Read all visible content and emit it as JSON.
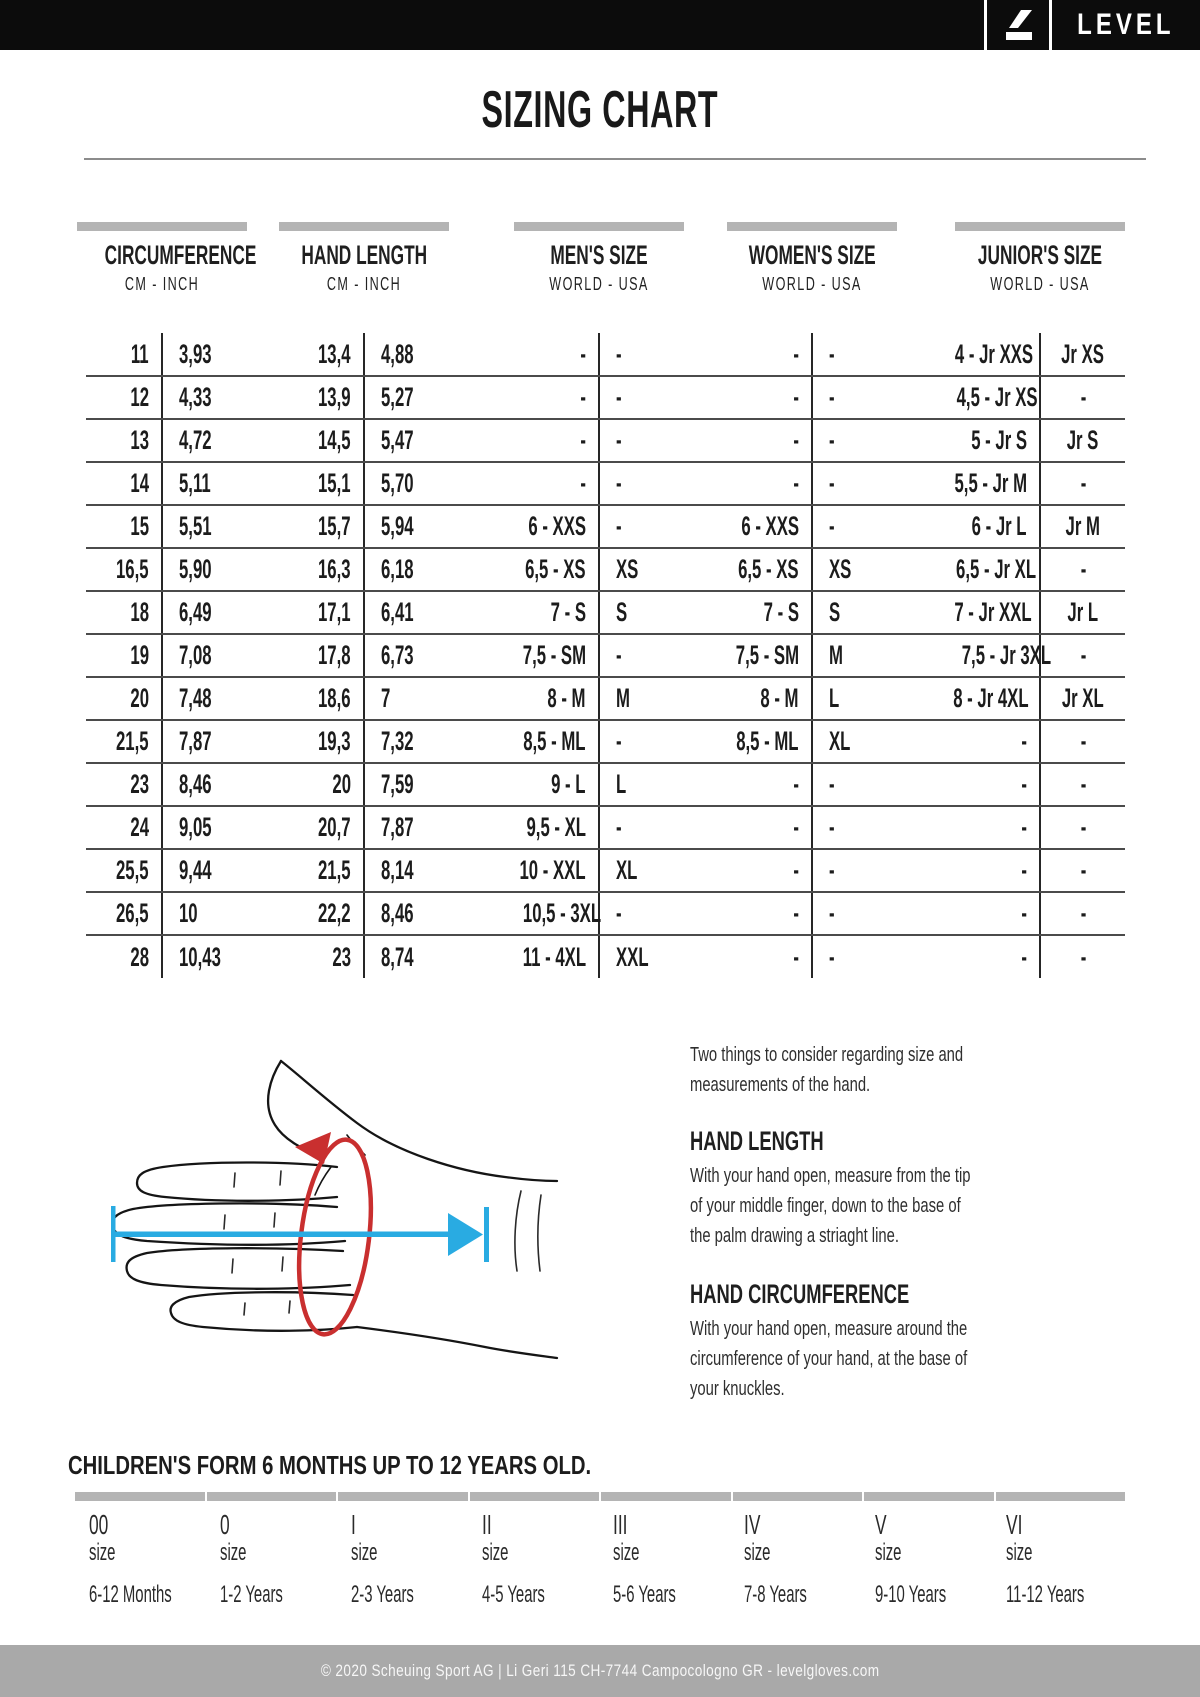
{
  "brand": {
    "wordmark": "LEVEL"
  },
  "page": {
    "title": "SIZING CHART"
  },
  "sizing_table": {
    "groups": [
      {
        "title": "CIRCUMFERENCE",
        "sub": "CM  -  INCH"
      },
      {
        "title": "HAND LENGTH",
        "sub": "CM  -  INCH"
      },
      {
        "title": "MEN'S SIZE",
        "sub": "WORLD  -  USA"
      },
      {
        "title": "WOMEN'S SIZE",
        "sub": "WORLD  -  USA"
      },
      {
        "title": "JUNIOR'S SIZE",
        "sub": "WORLD  -  USA"
      }
    ],
    "rows": [
      [
        "11",
        "3,93",
        "13,4",
        "4,88",
        "-",
        "-",
        "-",
        "-",
        "4 - Jr XXS",
        "Jr XS"
      ],
      [
        "12",
        "4,33",
        "13,9",
        "5,27",
        "-",
        "-",
        "-",
        "-",
        "4,5 - Jr XS",
        "-"
      ],
      [
        "13",
        "4,72",
        "14,5",
        "5,47",
        "-",
        "-",
        "-",
        "-",
        "5 - Jr S",
        "Jr S"
      ],
      [
        "14",
        "5,11",
        "15,1",
        "5,70",
        "-",
        "-",
        "-",
        "-",
        "5,5 - Jr M",
        "-"
      ],
      [
        "15",
        "5,51",
        "15,7",
        "5,94",
        "6 - XXS",
        "-",
        "6 - XXS",
        "-",
        "6 - Jr L",
        "Jr M"
      ],
      [
        "16,5",
        "5,90",
        "16,3",
        "6,18",
        "6,5 - XS",
        "XS",
        "6,5 - XS",
        "XS",
        "6,5 - Jr XL",
        "-"
      ],
      [
        "18",
        "6,49",
        "17,1",
        "6,41",
        "7 - S",
        "S",
        "7 - S",
        "S",
        "7 - Jr XXL",
        "Jr L"
      ],
      [
        "19",
        "7,08",
        "17,8",
        "6,73",
        "7,5 - SM",
        "-",
        "7,5 - SM",
        "M",
        "7,5 - Jr 3XL",
        "-"
      ],
      [
        "20",
        "7,48",
        "18,6",
        "7",
        "8 - M",
        "M",
        "8 - M",
        "L",
        "8 - Jr 4XL",
        "Jr XL"
      ],
      [
        "21,5",
        "7,87",
        "19,3",
        "7,32",
        "8,5 - ML",
        "-",
        "8,5 - ML",
        "XL",
        "-",
        "-"
      ],
      [
        "23",
        "8,46",
        "20",
        "7,59",
        "9 - L",
        "L",
        "-",
        "-",
        "-",
        "-"
      ],
      [
        "24",
        "9,05",
        "20,7",
        "7,87",
        "9,5 - XL",
        "-",
        "-",
        "-",
        "-",
        "-"
      ],
      [
        "25,5",
        "9,44",
        "21,5",
        "8,14",
        "10 - XXL",
        "XL",
        "-",
        "-",
        "-",
        "-"
      ],
      [
        "26,5",
        "10",
        "22,2",
        "8,46",
        "10,5 - 3XL",
        "-",
        "-",
        "-",
        "-",
        "-"
      ],
      [
        "28",
        "10,43",
        "23",
        "8,74",
        "11 - 4XL",
        "XXL",
        "-",
        "-",
        "-",
        "-"
      ]
    ]
  },
  "info": {
    "intro_lines": [
      "Two things to consider regarding size and",
      "measurements of the hand."
    ],
    "sections": [
      {
        "heading": "HAND LENGTH",
        "body_lines": [
          "With your hand open, measure from the tip",
          "of your middle finger, down to the base of",
          "the palm drawing a striaght line."
        ]
      },
      {
        "heading": "HAND CIRCUMFERENCE",
        "body_lines": [
          "With your hand open, measure around the",
          "circumference of your hand, at the base of",
          "your knuckles."
        ]
      }
    ]
  },
  "children": {
    "heading": "CHILDREN'S FORM 6 MONTHS UP TO 12 YEARS OLD.",
    "size_word": "size",
    "columns": [
      {
        "code": "00",
        "age": "6-12 Months"
      },
      {
        "code": "0",
        "age": "1-2 Years"
      },
      {
        "code": "I",
        "age": "2-3 Years"
      },
      {
        "code": "II",
        "age": "4-5 Years"
      },
      {
        "code": "III",
        "age": "5-6 Years"
      },
      {
        "code": "IV",
        "age": "7-8 Years"
      },
      {
        "code": "V",
        "age": "9-10 Years"
      },
      {
        "code": "VI",
        "age": "11-12 Years"
      }
    ]
  },
  "footer": {
    "text": "© 2020 Scheuing Sport AG | Li Geri 115 CH-7744 Campocologno GR - levelgloves.com"
  },
  "colors": {
    "accent_blue": "#29abe2",
    "accent_red": "#c92f2f",
    "bar_gray": "#b4b4b4",
    "footer_gray": "#a9a9a9",
    "header_black": "#0c0c0c"
  }
}
